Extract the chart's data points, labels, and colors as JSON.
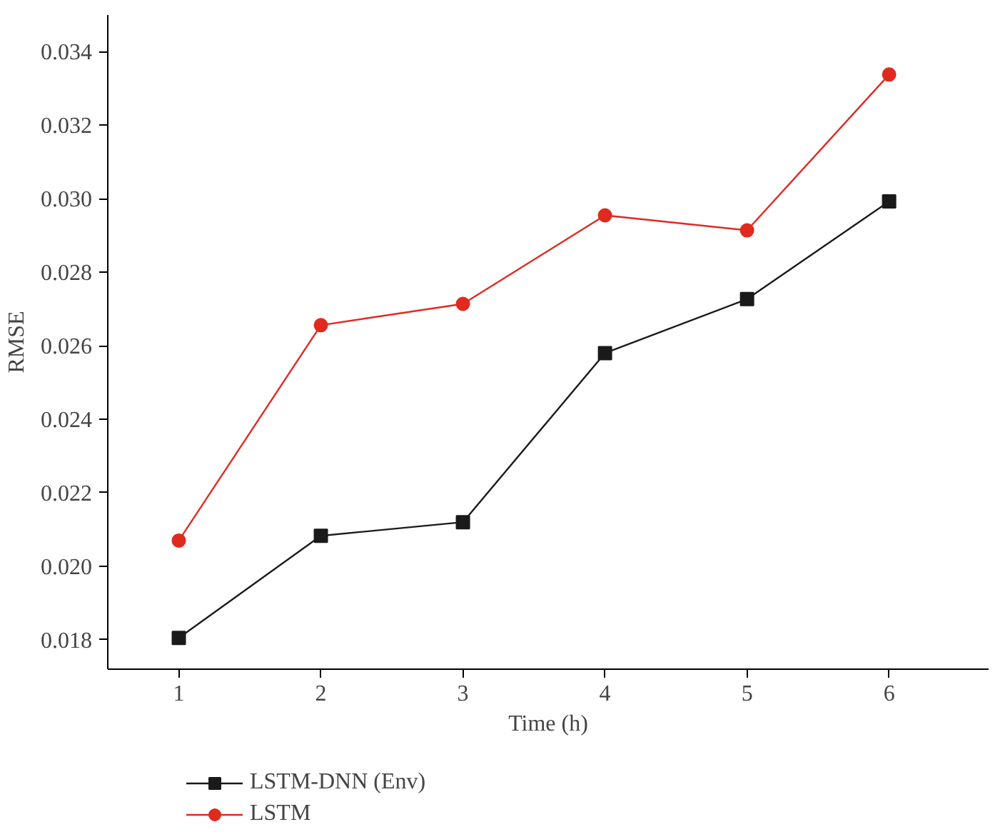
{
  "chart_data": {
    "type": "line",
    "xlabel": "Time (h)",
    "ylabel": "RMSE",
    "x": [
      1,
      2,
      3,
      4,
      5,
      6
    ],
    "series": [
      {
        "name": "LSTM-DNN (Env)",
        "color": "#1a1a1a",
        "marker": "square",
        "values": [
          0.01805,
          0.02083,
          0.0212,
          0.0258,
          0.02727,
          0.02993
        ]
      },
      {
        "name": "LSTM",
        "color": "#e02a20",
        "marker": "circle",
        "values": [
          0.0207,
          0.02656,
          0.02714,
          0.02955,
          0.02914,
          0.03338
        ]
      }
    ],
    "xlim": [
      0.5,
      6.7
    ],
    "ylim": [
      0.0172,
      0.035
    ],
    "xticks": [
      1,
      2,
      3,
      4,
      5,
      6
    ],
    "yticks": [
      {
        "value": 0.018,
        "label": "0.018"
      },
      {
        "value": 0.02,
        "label": "0.020"
      },
      {
        "value": 0.022,
        "label": "0.022"
      },
      {
        "value": 0.024,
        "label": "0.024"
      },
      {
        "value": 0.026,
        "label": "0.026"
      },
      {
        "value": 0.028,
        "label": "0.028"
      },
      {
        "value": 0.03,
        "label": "0.030"
      },
      {
        "value": 0.032,
        "label": "0.032"
      },
      {
        "value": 0.034,
        "label": "0.034"
      }
    ],
    "grid": false,
    "legend": "bottom left",
    "line_style": "solid"
  }
}
